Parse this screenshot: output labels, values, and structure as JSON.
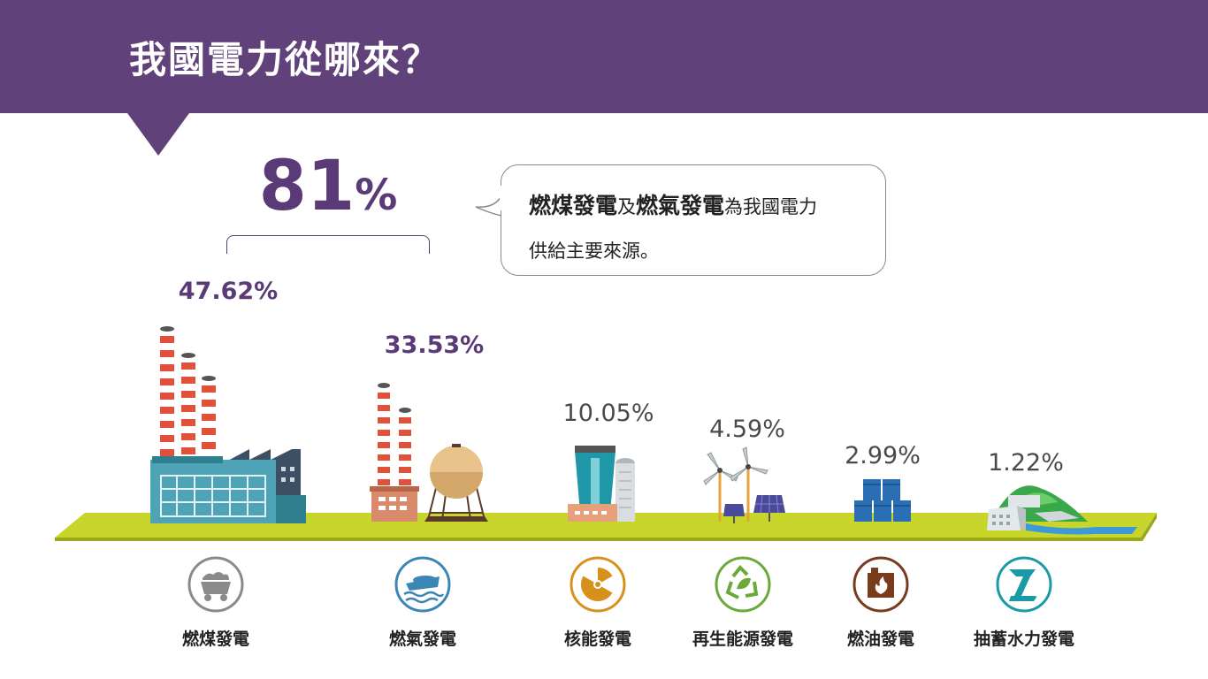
{
  "title": "我國電力從哪來？",
  "total": {
    "value": "81",
    "unit": "%"
  },
  "bubble": {
    "em1": "燃煤發電",
    "t1": "及",
    "em2": "燃氣發電",
    "t2": "為我國電力",
    "line2": "供給主要來源。"
  },
  "colors": {
    "purple": "#614179",
    "ground": "#c8d52a",
    "coal": "#8a8a8a",
    "gas": "#3b86b4",
    "nuclear": "#d8901c",
    "renew": "#6aaa3a",
    "oil": "#7a3a1c",
    "hydro": "#1a9aa6"
  },
  "chart_data": {
    "type": "table",
    "title": "我國電力從哪來？",
    "categories": [
      "燃煤發電",
      "燃氣發電",
      "核能發電",
      "再生能源發電",
      "燃油發電",
      "抽蓄水力發電"
    ],
    "values": [
      47.62,
      33.53,
      10.05,
      4.59,
      2.99,
      1.22
    ],
    "labels": [
      "47.62%",
      "33.53%",
      "10.05%",
      "4.59%",
      "2.99%",
      "1.22%"
    ],
    "icons": [
      "coal-cart-icon",
      "lng-ship-icon",
      "radiation-icon",
      "recycle-leaf-icon",
      "oil-barrel-fire-icon",
      "hydro-dam-icon"
    ],
    "highlight": {
      "combined": 81,
      "of": [
        "燃煤發電",
        "燃氣發電"
      ]
    }
  }
}
